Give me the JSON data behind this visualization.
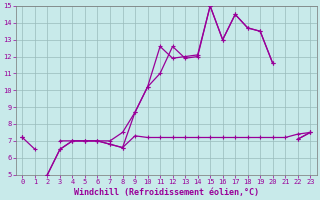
{
  "xlabel": "Windchill (Refroidissement éolien,°C)",
  "x_values": [
    0,
    1,
    2,
    3,
    4,
    5,
    6,
    7,
    8,
    9,
    10,
    11,
    12,
    13,
    14,
    15,
    16,
    17,
    18,
    19,
    20,
    21,
    22,
    23
  ],
  "series1": [
    7.2,
    6.5,
    null,
    7.0,
    7.0,
    7.0,
    7.0,
    6.8,
    6.6,
    7.3,
    7.2,
    7.2,
    7.2,
    7.2,
    7.2,
    7.2,
    7.2,
    7.2,
    7.2,
    7.2,
    7.2,
    7.2,
    7.4,
    7.5
  ],
  "series2": [
    7.2,
    null,
    5.0,
    6.5,
    7.0,
    7.0,
    7.0,
    7.0,
    7.5,
    8.7,
    10.2,
    12.6,
    11.9,
    12.0,
    12.1,
    15.0,
    13.0,
    14.5,
    13.7,
    13.5,
    11.6,
    null,
    7.1,
    7.5
  ],
  "series3": [
    7.2,
    null,
    5.0,
    6.5,
    7.0,
    7.0,
    7.0,
    6.8,
    6.6,
    8.7,
    10.2,
    11.0,
    12.6,
    11.9,
    12.0,
    15.0,
    13.0,
    14.5,
    13.7,
    13.5,
    11.6,
    null,
    7.1,
    7.5
  ],
  "line_color": "#990099",
  "bg_color": "#c8eaea",
  "grid_color": "#99bbbb",
  "ylim": [
    5,
    15
  ],
  "xlim": [
    -0.5,
    23.5
  ],
  "yticks": [
    5,
    6,
    7,
    8,
    9,
    10,
    11,
    12,
    13,
    14,
    15
  ],
  "xticks": [
    0,
    1,
    2,
    3,
    4,
    5,
    6,
    7,
    8,
    9,
    10,
    11,
    12,
    13,
    14,
    15,
    16,
    17,
    18,
    19,
    20,
    21,
    22,
    23
  ],
  "tick_fontsize": 5.0,
  "xlabel_fontsize": 6.0,
  "linewidth": 0.9,
  "markersize": 2.2
}
